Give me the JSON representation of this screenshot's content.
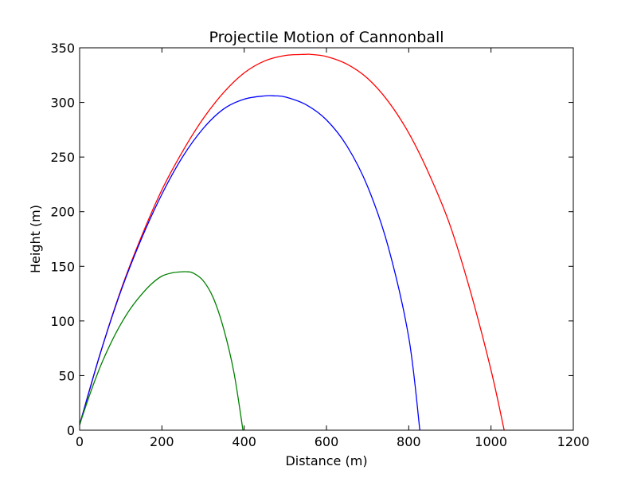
{
  "chart_data": {
    "type": "line",
    "title": "Projectile Motion of Cannonball",
    "xlabel": "Distance (m)",
    "ylabel": "Height (m)",
    "xlim": [
      0,
      1200
    ],
    "ylim": [
      0,
      350
    ],
    "xticks": [
      "0",
      "200",
      "400",
      "600",
      "800",
      "1000",
      "1200"
    ],
    "yticks": [
      "0",
      "50",
      "100",
      "150",
      "200",
      "250",
      "300",
      "350"
    ],
    "grid": false,
    "legend": "none",
    "series": [
      {
        "color": "#ff0000",
        "x": [
          0,
          50,
          100,
          150,
          200,
          250,
          300,
          350,
          400,
          450,
          500,
          550,
          560,
          600,
          650,
          700,
          750,
          800,
          850,
          900,
          950,
          1000,
          1032
        ],
        "y": [
          5,
          70,
          128,
          177,
          220,
          255,
          285,
          309,
          327,
          338,
          343,
          344,
          344,
          342,
          335,
          322,
          301,
          272,
          234,
          188,
          127,
          55,
          0
        ]
      },
      {
        "color": "#0000ff",
        "x": [
          0,
          50,
          100,
          150,
          200,
          250,
          300,
          350,
          400,
          450,
          475,
          500,
          550,
          600,
          650,
          700,
          750,
          800,
          827
        ],
        "y": [
          5,
          70,
          127,
          175,
          216,
          250,
          276,
          294,
          303,
          306,
          306,
          305,
          298,
          284,
          260,
          223,
          168,
          85,
          0
        ]
      },
      {
        "color": "#008000",
        "x": [
          0,
          25,
          50,
          75,
          100,
          125,
          150,
          175,
          200,
          225,
          250,
          260,
          275,
          300,
          325,
          350,
          375,
          397
        ],
        "y": [
          5,
          33,
          58,
          79,
          97,
          112,
          124,
          134,
          141,
          144,
          145,
          145,
          144,
          137,
          121,
          93,
          53,
          0
        ]
      }
    ]
  }
}
